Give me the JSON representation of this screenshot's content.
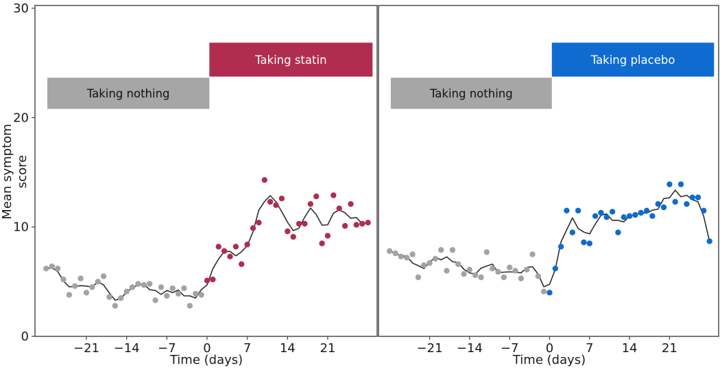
{
  "figure": {
    "background": "#ffffff",
    "spine_color": "#4d4d4d",
    "trend_line_color": "#2d2d2d",
    "text_color": "#1a1a1a",
    "ylabel": "Mean symptom score",
    "xlabel": "Time (days)",
    "xlim": [
      -29.95,
      29.6
    ],
    "ylim": [
      0,
      30
    ]
  },
  "chart_data": [
    {
      "type": "scatter",
      "panel": "statin",
      "xlabel": "Time (days)",
      "ylabel": "Mean symptom score",
      "xlim": [
        -29.95,
        29.6
      ],
      "ylim": [
        0,
        30
      ],
      "xticks": [
        -21,
        -14,
        -7,
        0,
        7,
        14,
        21
      ],
      "xtick_labels": [
        "−21",
        "−14",
        "−7",
        "0",
        "7",
        "14",
        "21"
      ],
      "yticks": [
        0,
        10,
        20,
        30
      ],
      "ytick_labels": [
        "0",
        "10",
        "20",
        "30"
      ],
      "grid": false,
      "trend_note": "dark line = 3-day moving average of all points",
      "banners": [
        {
          "name": "taking-nothing",
          "label": "Taking nothing",
          "x_start": -27.8,
          "x_end": 0.4,
          "y_bottom": 20.8,
          "y_top": 23.65,
          "bg": "#a6a6a6",
          "text_color": "#111111"
        },
        {
          "name": "taking-statin",
          "label": "Taking statin",
          "x_start": 0.4,
          "x_end": 28.8,
          "y_bottom": 23.75,
          "y_top": 26.85,
          "bg": "#b02d4f",
          "text_color": "#ffffff"
        }
      ],
      "series": [
        {
          "name": "Taking nothing",
          "color": "#a3a3a3",
          "points": [
            [
              -28,
              6.2
            ],
            [
              -27,
              6.4
            ],
            [
              -26,
              6.2
            ],
            [
              -25,
              5.2
            ],
            [
              -24,
              3.8
            ],
            [
              -23,
              4.6
            ],
            [
              -22,
              5.3
            ],
            [
              -21,
              4.0
            ],
            [
              -20,
              4.5
            ],
            [
              -19,
              5.0
            ],
            [
              -18,
              5.5
            ],
            [
              -17,
              3.6
            ],
            [
              -16,
              2.8
            ],
            [
              -15,
              3.5
            ],
            [
              -14,
              4.1
            ],
            [
              -13,
              4.5
            ],
            [
              -12,
              4.8
            ],
            [
              -11,
              4.7
            ],
            [
              -10,
              4.8
            ],
            [
              -9,
              3.3
            ],
            [
              -8,
              4.5
            ],
            [
              -7,
              3.7
            ],
            [
              -6,
              4.4
            ],
            [
              -5,
              3.9
            ],
            [
              -4,
              4.4
            ],
            [
              -3,
              2.8
            ],
            [
              -2,
              3.9
            ],
            [
              -1,
              3.8
            ]
          ]
        },
        {
          "name": "Taking statin",
          "color": "#b02d4f",
          "points": [
            [
              0,
              5.1
            ],
            [
              1,
              5.2
            ],
            [
              2,
              8.2
            ],
            [
              3,
              7.8
            ],
            [
              4,
              7.3
            ],
            [
              5,
              8.2
            ],
            [
              6,
              6.6
            ],
            [
              7,
              8.4
            ],
            [
              8,
              9.9
            ],
            [
              9,
              10.4
            ],
            [
              10,
              14.3
            ],
            [
              11,
              12.3
            ],
            [
              12,
              12.0
            ],
            [
              13,
              12.6
            ],
            [
              14,
              9.6
            ],
            [
              15,
              9.1
            ],
            [
              16,
              10.3
            ],
            [
              17,
              10.3
            ],
            [
              18,
              12.1
            ],
            [
              19,
              12.8
            ],
            [
              20,
              8.5
            ],
            [
              21,
              9.2
            ],
            [
              22,
              12.9
            ],
            [
              23,
              11.7
            ],
            [
              24,
              10.1
            ],
            [
              25,
              12.1
            ],
            [
              26,
              10.2
            ],
            [
              27,
              10.3
            ],
            [
              28,
              10.4
            ]
          ]
        }
      ]
    },
    {
      "type": "scatter",
      "panel": "placebo",
      "xlabel": "Time (days)",
      "ylabel": "Mean symptom score",
      "xlim": [
        -29.95,
        29.6
      ],
      "ylim": [
        0,
        30
      ],
      "xticks": [
        -21,
        -14,
        -7,
        0,
        7,
        14,
        21
      ],
      "xtick_labels": [
        "−21",
        "−14",
        "−7",
        "0",
        "7",
        "14",
        "21"
      ],
      "yticks": [
        0,
        10,
        20,
        30
      ],
      "ytick_labels": [
        "0",
        "10",
        "20",
        "30"
      ],
      "grid": false,
      "trend_note": "dark line = 3-day moving average of all points",
      "banners": [
        {
          "name": "taking-nothing",
          "label": "Taking nothing",
          "x_start": -27.8,
          "x_end": 0.4,
          "y_bottom": 20.8,
          "y_top": 23.65,
          "bg": "#a6a6a6",
          "text_color": "#111111"
        },
        {
          "name": "taking-placebo",
          "label": "Taking placebo",
          "x_start": 0.4,
          "x_end": 28.8,
          "y_bottom": 23.75,
          "y_top": 26.85,
          "bg": "#0f6bd0",
          "text_color": "#ffffff"
        }
      ],
      "series": [
        {
          "name": "Taking nothing",
          "color": "#a3a3a3",
          "points": [
            [
              -28,
              7.8
            ],
            [
              -27,
              7.6
            ],
            [
              -26,
              7.3
            ],
            [
              -25,
              7.2
            ],
            [
              -24,
              7.5
            ],
            [
              -23,
              5.4
            ],
            [
              -22,
              6.5
            ],
            [
              -21,
              6.7
            ],
            [
              -20,
              7.1
            ],
            [
              -19,
              7.9
            ],
            [
              -18,
              6.0
            ],
            [
              -17,
              7.9
            ],
            [
              -16,
              6.6
            ],
            [
              -15,
              5.7
            ],
            [
              -14,
              6.1
            ],
            [
              -13,
              5.6
            ],
            [
              -12,
              5.4
            ],
            [
              -11,
              7.7
            ],
            [
              -10,
              6.2
            ],
            [
              -9,
              5.9
            ],
            [
              -8,
              5.4
            ],
            [
              -7,
              6.3
            ],
            [
              -6,
              6.0
            ],
            [
              -5,
              5.3
            ],
            [
              -4,
              6.1
            ],
            [
              -3,
              7.5
            ],
            [
              -2,
              5.5
            ],
            [
              -1,
              4.1
            ]
          ]
        },
        {
          "name": "Taking placebo",
          "color": "#0f6bd0",
          "points": [
            [
              0,
              4.0
            ],
            [
              1,
              6.2
            ],
            [
              2,
              8.2
            ],
            [
              3,
              11.5
            ],
            [
              4,
              9.5
            ],
            [
              5,
              11.5
            ],
            [
              6,
              8.6
            ],
            [
              7,
              8.5
            ],
            [
              8,
              11.0
            ],
            [
              9,
              11.3
            ],
            [
              10,
              10.9
            ],
            [
              11,
              11.4
            ],
            [
              12,
              9.5
            ],
            [
              13,
              10.9
            ],
            [
              14,
              11.0
            ],
            [
              15,
              11.1
            ],
            [
              16,
              11.3
            ],
            [
              17,
              11.5
            ],
            [
              18,
              11.0
            ],
            [
              19,
              12.1
            ],
            [
              20,
              11.8
            ],
            [
              21,
              13.9
            ],
            [
              22,
              12.3
            ],
            [
              23,
              13.9
            ],
            [
              24,
              12.1
            ],
            [
              25,
              12.7
            ],
            [
              26,
              12.7
            ],
            [
              27,
              11.5
            ],
            [
              28,
              8.7
            ]
          ]
        }
      ]
    }
  ]
}
